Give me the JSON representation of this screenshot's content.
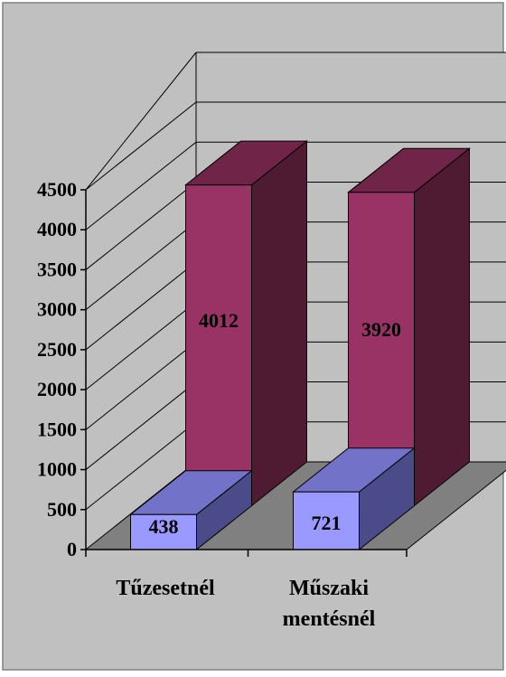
{
  "chart_data": {
    "type": "bar",
    "style": "3d-clustered-column",
    "categories": [
      "Tűzesetnél",
      "Műszaki mentésnél"
    ],
    "category_lines": [
      [
        "Tűzesetnél"
      ],
      [
        "Műszaki",
        "mentésnél"
      ]
    ],
    "series": [
      {
        "values": [
          438,
          721
        ],
        "color": "#9999ff",
        "side_color": "#4b4b8a",
        "top_color": "#7272c8"
      },
      {
        "values": [
          4012,
          3920
        ],
        "color": "#993366",
        "side_color": "#4f1b33",
        "top_color": "#6f2448"
      }
    ],
    "yticks": [
      0,
      500,
      1000,
      1500,
      2000,
      2500,
      3000,
      3500,
      4000,
      4500
    ],
    "ylim": [
      0,
      4500
    ],
    "grid": true,
    "legend": "none",
    "colors": {
      "background": "#c0c0c0",
      "walls": "#c0c0c0",
      "floor": "#808080",
      "outline": "#000000"
    }
  }
}
